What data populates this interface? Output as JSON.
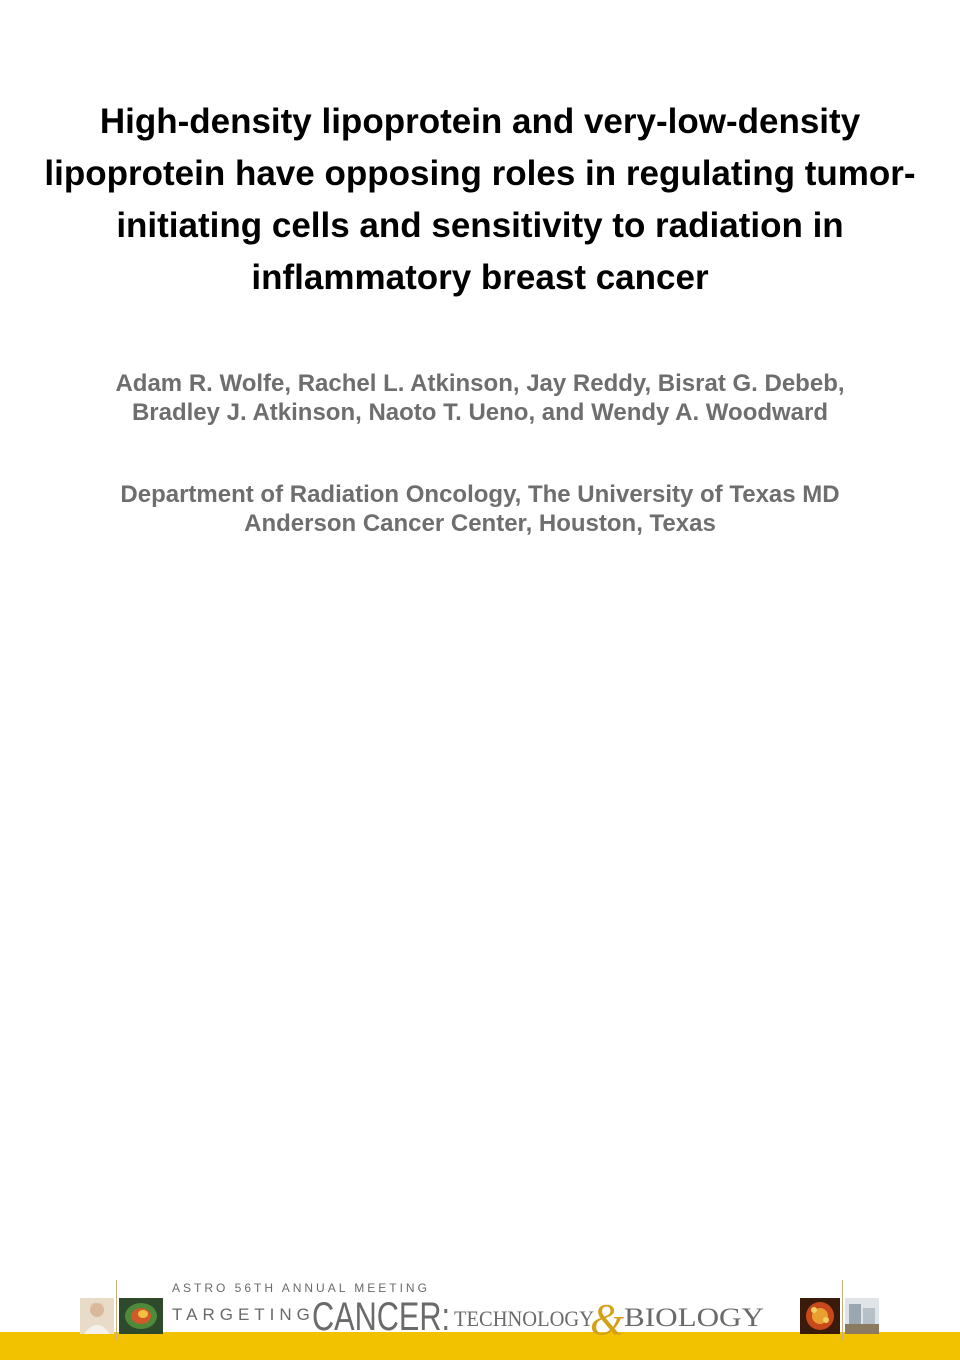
{
  "slide": {
    "title": "High-density lipoprotein and very-low-density lipoprotein have opposing roles in regulating tumor-initiating cells and sensitivity to radiation in inflammatory breast cancer",
    "authors_line1": "Adam R. Wolfe, Rachel L. Atkinson, Jay Reddy, Bisrat G. Debeb,",
    "authors_line2": "Bradley J. Atkinson, Naoto T. Ueno, and Wendy A. Woodward",
    "affiliation_line1": "Department of Radiation Oncology, The University of Texas MD",
    "affiliation_line2": "Anderson Cancer Center, Houston, Texas"
  },
  "banner": {
    "meeting": "ASTRO 56TH ANNUAL MEETING",
    "logo_word1": "TARGETING",
    "logo_word2": "CANCER:",
    "logo_word3": "TECHNOLOGY",
    "logo_amp": "&",
    "logo_word4": "BIOLOGY"
  },
  "colors": {
    "title": "#000000",
    "subtitle_gray": "#6e6e6e",
    "banner_gold": "#f2c200",
    "logo_gray": "#6a6a6a",
    "amp_gold": "#d4a017"
  }
}
